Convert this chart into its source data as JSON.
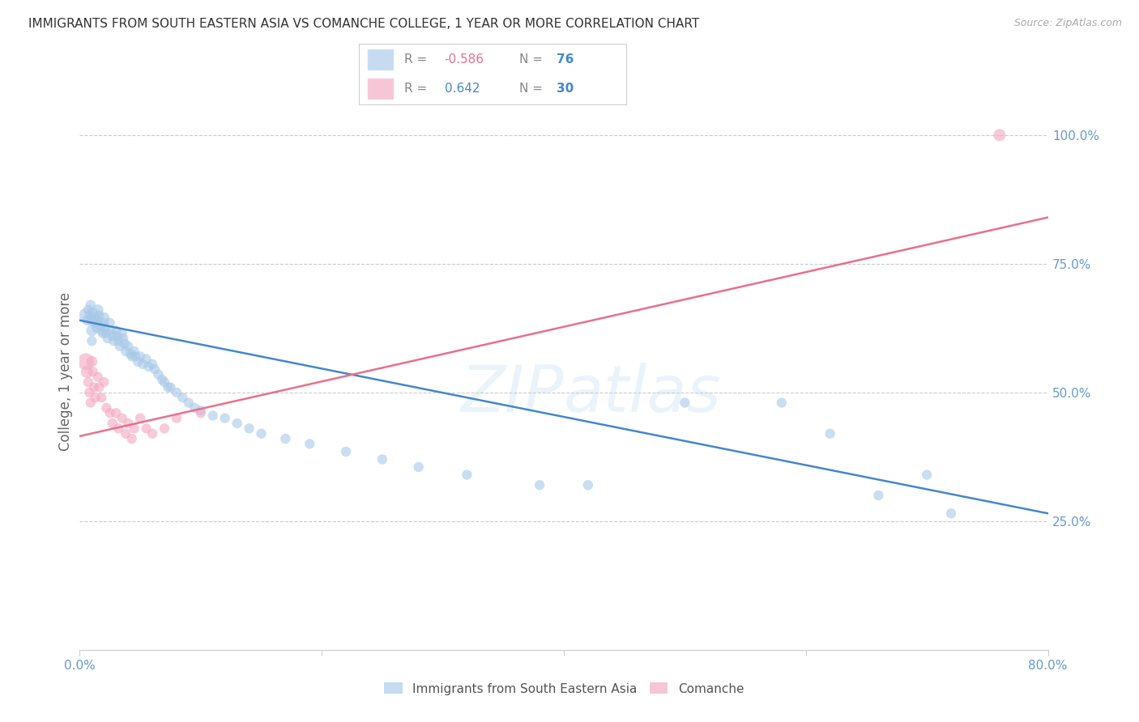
{
  "title": "IMMIGRANTS FROM SOUTH EASTERN ASIA VS COMANCHE COLLEGE, 1 YEAR OR MORE CORRELATION CHART",
  "source": "Source: ZipAtlas.com",
  "ylabel": "College, 1 year or more",
  "watermark": "ZIPatlas",
  "legend_blue_r": "-0.586",
  "legend_blue_n": "76",
  "legend_pink_r": "0.642",
  "legend_pink_n": "30",
  "legend_blue_label": "Immigrants from South Eastern Asia",
  "legend_pink_label": "Comanche",
  "blue_color": "#a8c8e8",
  "pink_color": "#f4a8c0",
  "blue_line_color": "#4488cc",
  "pink_line_color": "#e8708c",
  "background_color": "#ffffff",
  "grid_color": "#cccccc",
  "title_color": "#333333",
  "axis_label_color": "#6699cc",
  "blue_scatter": {
    "x": [
      0.005,
      0.006,
      0.007,
      0.008,
      0.009,
      0.01,
      0.01,
      0.01,
      0.011,
      0.012,
      0.013,
      0.014,
      0.015,
      0.015,
      0.016,
      0.017,
      0.018,
      0.019,
      0.02,
      0.02,
      0.021,
      0.022,
      0.023,
      0.025,
      0.026,
      0.027,
      0.028,
      0.03,
      0.031,
      0.032,
      0.033,
      0.035,
      0.036,
      0.037,
      0.038,
      0.04,
      0.042,
      0.043,
      0.045,
      0.046,
      0.048,
      0.05,
      0.052,
      0.055,
      0.057,
      0.06,
      0.062,
      0.065,
      0.068,
      0.07,
      0.073,
      0.075,
      0.08,
      0.085,
      0.09,
      0.095,
      0.1,
      0.11,
      0.12,
      0.13,
      0.14,
      0.15,
      0.17,
      0.19,
      0.22,
      0.25,
      0.28,
      0.32,
      0.38,
      0.42,
      0.5,
      0.58,
      0.62,
      0.66,
      0.7,
      0.72
    ],
    "y": [
      0.65,
      0.64,
      0.66,
      0.65,
      0.67,
      0.64,
      0.62,
      0.6,
      0.655,
      0.645,
      0.635,
      0.625,
      0.66,
      0.64,
      0.65,
      0.63,
      0.62,
      0.615,
      0.645,
      0.635,
      0.625,
      0.615,
      0.605,
      0.635,
      0.62,
      0.61,
      0.6,
      0.62,
      0.61,
      0.6,
      0.59,
      0.615,
      0.605,
      0.595,
      0.58,
      0.59,
      0.575,
      0.57,
      0.58,
      0.57,
      0.56,
      0.57,
      0.555,
      0.565,
      0.55,
      0.555,
      0.545,
      0.535,
      0.525,
      0.52,
      0.51,
      0.51,
      0.5,
      0.49,
      0.48,
      0.47,
      0.465,
      0.455,
      0.45,
      0.44,
      0.43,
      0.42,
      0.41,
      0.4,
      0.385,
      0.37,
      0.355,
      0.34,
      0.32,
      0.32,
      0.48,
      0.48,
      0.42,
      0.3,
      0.34,
      0.265
    ],
    "sizes": [
      150,
      80,
      80,
      80,
      80,
      120,
      100,
      80,
      80,
      80,
      80,
      80,
      100,
      80,
      80,
      80,
      80,
      80,
      100,
      80,
      80,
      80,
      80,
      80,
      80,
      80,
      80,
      80,
      80,
      80,
      80,
      80,
      80,
      80,
      80,
      80,
      80,
      80,
      80,
      80,
      80,
      80,
      80,
      80,
      80,
      80,
      80,
      80,
      80,
      80,
      80,
      80,
      80,
      80,
      80,
      80,
      80,
      80,
      80,
      80,
      80,
      80,
      80,
      80,
      80,
      80,
      80,
      80,
      80,
      80,
      80,
      80,
      80,
      80,
      80,
      80
    ]
  },
  "pink_scatter": {
    "x": [
      0.005,
      0.006,
      0.007,
      0.008,
      0.009,
      0.01,
      0.011,
      0.012,
      0.013,
      0.015,
      0.016,
      0.018,
      0.02,
      0.022,
      0.025,
      0.027,
      0.03,
      0.032,
      0.035,
      0.038,
      0.04,
      0.043,
      0.045,
      0.05,
      0.055,
      0.06,
      0.07,
      0.08,
      0.1,
      0.76
    ],
    "y": [
      0.56,
      0.54,
      0.52,
      0.5,
      0.48,
      0.56,
      0.54,
      0.51,
      0.49,
      0.53,
      0.51,
      0.49,
      0.52,
      0.47,
      0.46,
      0.44,
      0.46,
      0.43,
      0.45,
      0.42,
      0.44,
      0.41,
      0.43,
      0.45,
      0.43,
      0.42,
      0.43,
      0.45,
      0.46,
      1.0
    ],
    "sizes": [
      220,
      120,
      80,
      80,
      80,
      100,
      80,
      80,
      80,
      80,
      80,
      80,
      80,
      80,
      80,
      80,
      80,
      80,
      80,
      80,
      80,
      80,
      80,
      80,
      80,
      80,
      80,
      80,
      80,
      120
    ]
  },
  "blue_line": {
    "x0": 0.0,
    "x1": 0.8,
    "y0": 0.64,
    "y1": 0.265
  },
  "pink_line": {
    "x0": 0.0,
    "x1": 0.8,
    "y0": 0.415,
    "y1": 0.84
  },
  "xlim": [
    0.0,
    0.8
  ],
  "ylim": [
    0.0,
    1.08
  ],
  "xticks": [
    0.0,
    0.2,
    0.4,
    0.6,
    0.8
  ],
  "xtick_labels": [
    "0.0%",
    "",
    "",
    "",
    "80.0%"
  ],
  "yticks_right": [
    0.25,
    0.5,
    0.75,
    1.0
  ],
  "ytick_right_labels": [
    "25.0%",
    "50.0%",
    "75.0%",
    "100.0%"
  ]
}
